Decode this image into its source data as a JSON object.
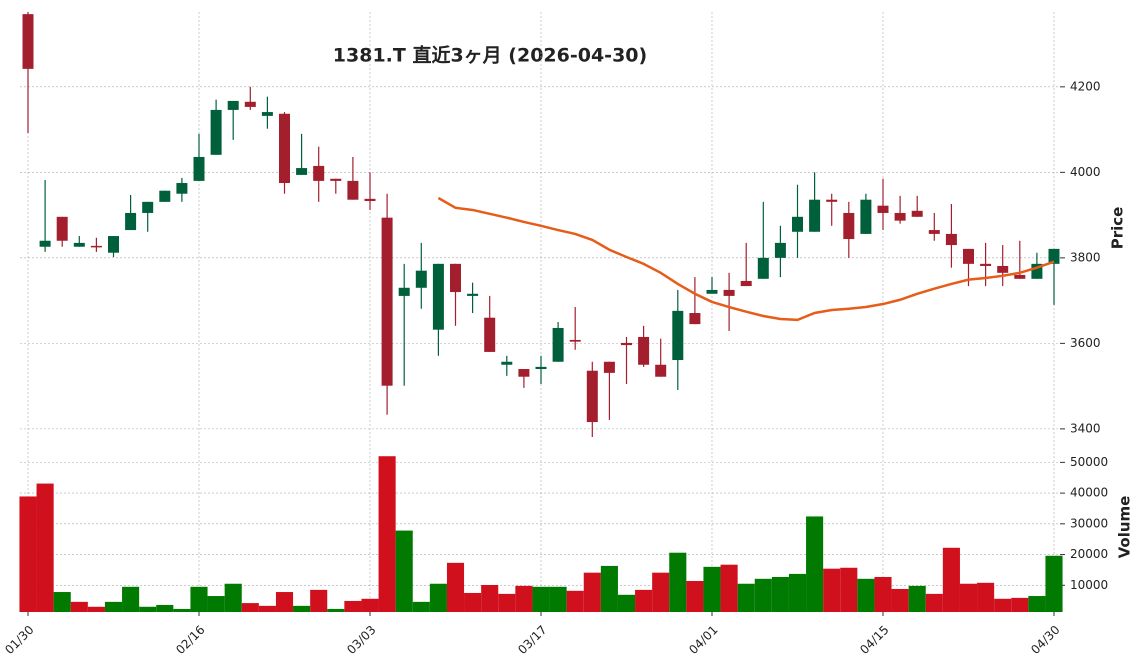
{
  "chart_data": {
    "type": "candlestick",
    "title": "1381.T  直近3ヶ月  (2026-04-30)",
    "x": [
      "01/30",
      null,
      null,
      null,
      null,
      null,
      null,
      null,
      null,
      null,
      "02/16",
      null,
      null,
      null,
      null,
      null,
      null,
      null,
      null,
      null,
      "03/03",
      null,
      null,
      null,
      null,
      null,
      null,
      null,
      null,
      null,
      "03/17",
      null,
      null,
      null,
      null,
      null,
      null,
      null,
      null,
      null,
      "04/01",
      null,
      null,
      null,
      null,
      null,
      null,
      null,
      null,
      null,
      "04/15",
      null,
      null,
      null,
      null,
      null,
      null,
      null,
      null,
      null,
      "04/30"
    ],
    "open": [
      4370,
      3826,
      3896,
      3826,
      3828,
      3812,
      3865,
      3905,
      3931,
      3950,
      3980,
      4041,
      4146,
      4165,
      4132,
      4137,
      3994,
      4015,
      3985,
      3980,
      3938,
      3894,
      3711,
      3730,
      3632,
      3786,
      3711,
      3660,
      3550,
      3540,
      3540,
      3557,
      3608,
      3536,
      3557,
      3601,
      3615,
      3550,
      3561,
      3671,
      3716,
      3725,
      3746,
      3751,
      3800,
      3861,
      3861,
      3936,
      3905,
      3856,
      3922,
      3905,
      3910,
      3865,
      3856,
      3821,
      3786,
      3781,
      3760,
      3751,
      3786
    ],
    "high": [
      4375,
      3982,
      3896,
      3851,
      3847,
      3851,
      3947,
      3931,
      3957,
      3987,
      4090,
      4170,
      4167,
      4200,
      4177,
      4141,
      4090,
      4060,
      3985,
      4036,
      4000,
      3950,
      3786,
      3835,
      3786,
      3786,
      3742,
      3711,
      3571,
      3540,
      3571,
      3650,
      3685,
      3557,
      3557,
      3615,
      3641,
      3611,
      3725,
      3755,
      3755,
      3765,
      3835,
      3931,
      3875,
      3971,
      4000,
      3950,
      3931,
      3950,
      3985,
      3945,
      3945,
      3905,
      3926,
      3821,
      3835,
      3830,
      3840,
      3812,
      3821
    ],
    "low": [
      4092,
      3814,
      3826,
      3826,
      3814,
      3802,
      3865,
      3861,
      3931,
      3931,
      3980,
      4041,
      4076,
      4146,
      4102,
      3950,
      3994,
      3931,
      3950,
      3936,
      3912,
      3433,
      3501,
      3681,
      3571,
      3641,
      3671,
      3580,
      3524,
      3496,
      3505,
      3557,
      3585,
      3381,
      3421,
      3505,
      3545,
      3522,
      3491,
      3645,
      3716,
      3629,
      3734,
      3751,
      3755,
      3800,
      3861,
      3875,
      3800,
      3856,
      3865,
      3880,
      3896,
      3840,
      3777,
      3734,
      3734,
      3734,
      3751,
      3751,
      3690
    ],
    "close": [
      4242,
      3840,
      3840,
      3835,
      3826,
      3851,
      3905,
      3931,
      3957,
      3975,
      4036,
      4146,
      4167,
      4153,
      4141,
      3975,
      4010,
      3980,
      3980,
      3936,
      3933,
      3501,
      3730,
      3770,
      3786,
      3720,
      3716,
      3580,
      3557,
      3522,
      3545,
      3636,
      3604,
      3416,
      3531,
      3596,
      3550,
      3522,
      3676,
      3645,
      3725,
      3711,
      3734,
      3800,
      3835,
      3896,
      3936,
      3931,
      3844,
      3936,
      3905,
      3887,
      3896,
      3856,
      3830,
      3786,
      3781,
      3765,
      3751,
      3786,
      3821
    ],
    "up_color": "#00603c",
    "down_color": "#a31f2e",
    "ylim": [
      3374,
      4375
    ],
    "yticks": [
      3400,
      3600,
      3800,
      4000,
      4200
    ],
    "ylabel": "Price",
    "grid": true,
    "ma": {
      "color": "#e65c19",
      "values": [
        null,
        null,
        null,
        null,
        null,
        null,
        null,
        null,
        null,
        null,
        null,
        null,
        null,
        null,
        null,
        null,
        null,
        null,
        null,
        null,
        null,
        null,
        null,
        null,
        3940,
        3917,
        3912,
        3903,
        3894,
        3884,
        3875,
        3865,
        3856,
        3842,
        3819,
        3802,
        3786,
        3765,
        3739,
        3716,
        3697,
        3685,
        3674,
        3664,
        3657,
        3655,
        3671,
        3678,
        3681,
        3685,
        3692,
        3702,
        3716,
        3728,
        3739,
        3749,
        3753,
        3758,
        3765,
        3777,
        3791
      ]
    },
    "volume": {
      "ylabel": "Volume",
      "values": [
        38900,
        43100,
        7800,
        4600,
        3000,
        4600,
        9500,
        3000,
        3600,
        2300,
        9500,
        6500,
        10500,
        4200,
        3300,
        7800,
        3300,
        8500,
        2300,
        4900,
        5600,
        52000,
        27800,
        4600,
        10500,
        17300,
        7500,
        10100,
        7200,
        9800,
        9500,
        9500,
        8200,
        14100,
        16300,
        6900,
        8500,
        14100,
        20600,
        11400,
        16000,
        16700,
        10500,
        12100,
        12700,
        13700,
        32400,
        15400,
        15700,
        12100,
        12700,
        8800,
        9800,
        7200,
        22200,
        10500,
        10800,
        5600,
        5900,
        6500,
        19600
      ],
      "up_color": "#007a00",
      "down_color": "#d0101c",
      "ylim": [
        0,
        55000
      ],
      "yticks": [
        10000,
        20000,
        30000,
        40000,
        50000
      ]
    }
  }
}
